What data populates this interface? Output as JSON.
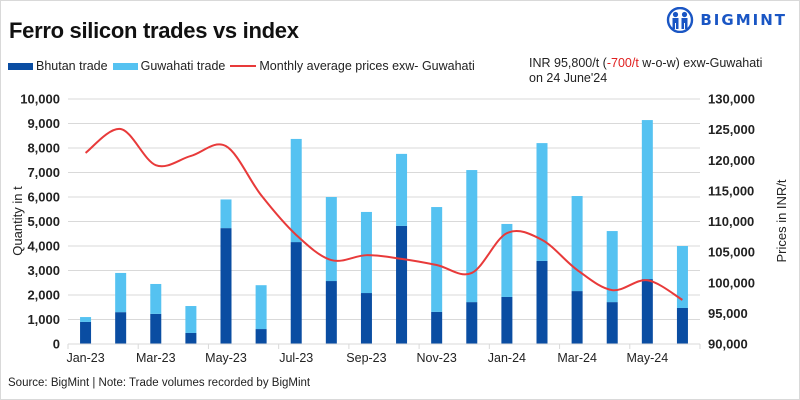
{
  "title": "Ferro silicon trades vs index",
  "logo": {
    "text": "BIGMINT",
    "icon": "bigmint-people-icon",
    "color": "#1a56c4"
  },
  "legend": [
    {
      "label": "Bhutan trade",
      "type": "bar",
      "color": "#0a4da2"
    },
    {
      "label": "Guwahati trade",
      "type": "bar",
      "color": "#55c2f1"
    },
    {
      "label": "Monthly average prices exw- Guwahati",
      "type": "line",
      "color": "#e83a3a"
    }
  ],
  "note": {
    "prefix": "INR 95,800/t (",
    "change": "-700/t",
    "suffix": " w-o-w) exw-Guwahati",
    "line2": "on 24 June'24"
  },
  "footer": "Source: BigMint | Note: Trade volumes recorded by BigMint",
  "chart_data": {
    "type": "bar",
    "stacked": true,
    "title": "Ferro silicon trades vs index",
    "categories": [
      "Jan-23",
      "Feb-23",
      "Mar-23",
      "Apr-23",
      "May-23",
      "Jun-23",
      "Jul-23",
      "Aug-23",
      "Sep-23",
      "Oct-23",
      "Nov-23",
      "Dec-23",
      "Jan-24",
      "Feb-24",
      "Mar-24",
      "Apr-24",
      "May-24",
      "Jun-24"
    ],
    "x_tick_labels": [
      "Jan-23",
      "Mar-23",
      "May-23",
      "Jul-23",
      "Sep-23",
      "Nov-23",
      "Jan-24",
      "Mar-24",
      "May-24"
    ],
    "series": [
      {
        "name": "Bhutan trade",
        "type": "bar",
        "axis": "left",
        "color": "#0a4da2",
        "values": [
          900,
          1300,
          1230,
          450,
          4730,
          610,
          4160,
          2570,
          2080,
          4820,
          1310,
          1710,
          1920,
          3390,
          2160,
          1710,
          2650,
          1470
        ]
      },
      {
        "name": "Guwahati trade",
        "type": "bar",
        "axis": "left",
        "color": "#55c2f1",
        "values": [
          200,
          1600,
          1220,
          1100,
          1170,
          1790,
          4210,
          3430,
          3310,
          2940,
          4280,
          5390,
          2980,
          4810,
          3880,
          2900,
          6490,
          2530
        ]
      },
      {
        "name": "Monthly average prices exw- Guwahati",
        "type": "line",
        "axis": "right",
        "color": "#e83a3a",
        "values": [
          121200,
          125100,
          119200,
          120700,
          122300,
          114300,
          107800,
          103700,
          104500,
          103900,
          102900,
          101600,
          108100,
          107000,
          102100,
          98800,
          100400,
          97200
        ]
      }
    ],
    "ylabel": "Quantity in t",
    "ylim": [
      0,
      10000
    ],
    "yticks": [
      "0",
      "1,000",
      "2,000",
      "3,000",
      "4,000",
      "5,000",
      "6,000",
      "7,000",
      "8,000",
      "9,000",
      "10,000"
    ],
    "y2label": "Prices in INR/t",
    "y2lim": [
      90000,
      130000
    ],
    "y2ticks": [
      "90,000",
      "95,000",
      "100,000",
      "105,000",
      "110,000",
      "115,000",
      "120,000",
      "125,000",
      "130,000"
    ],
    "xlabel": "",
    "grid": true,
    "legend_position": "top-left"
  }
}
